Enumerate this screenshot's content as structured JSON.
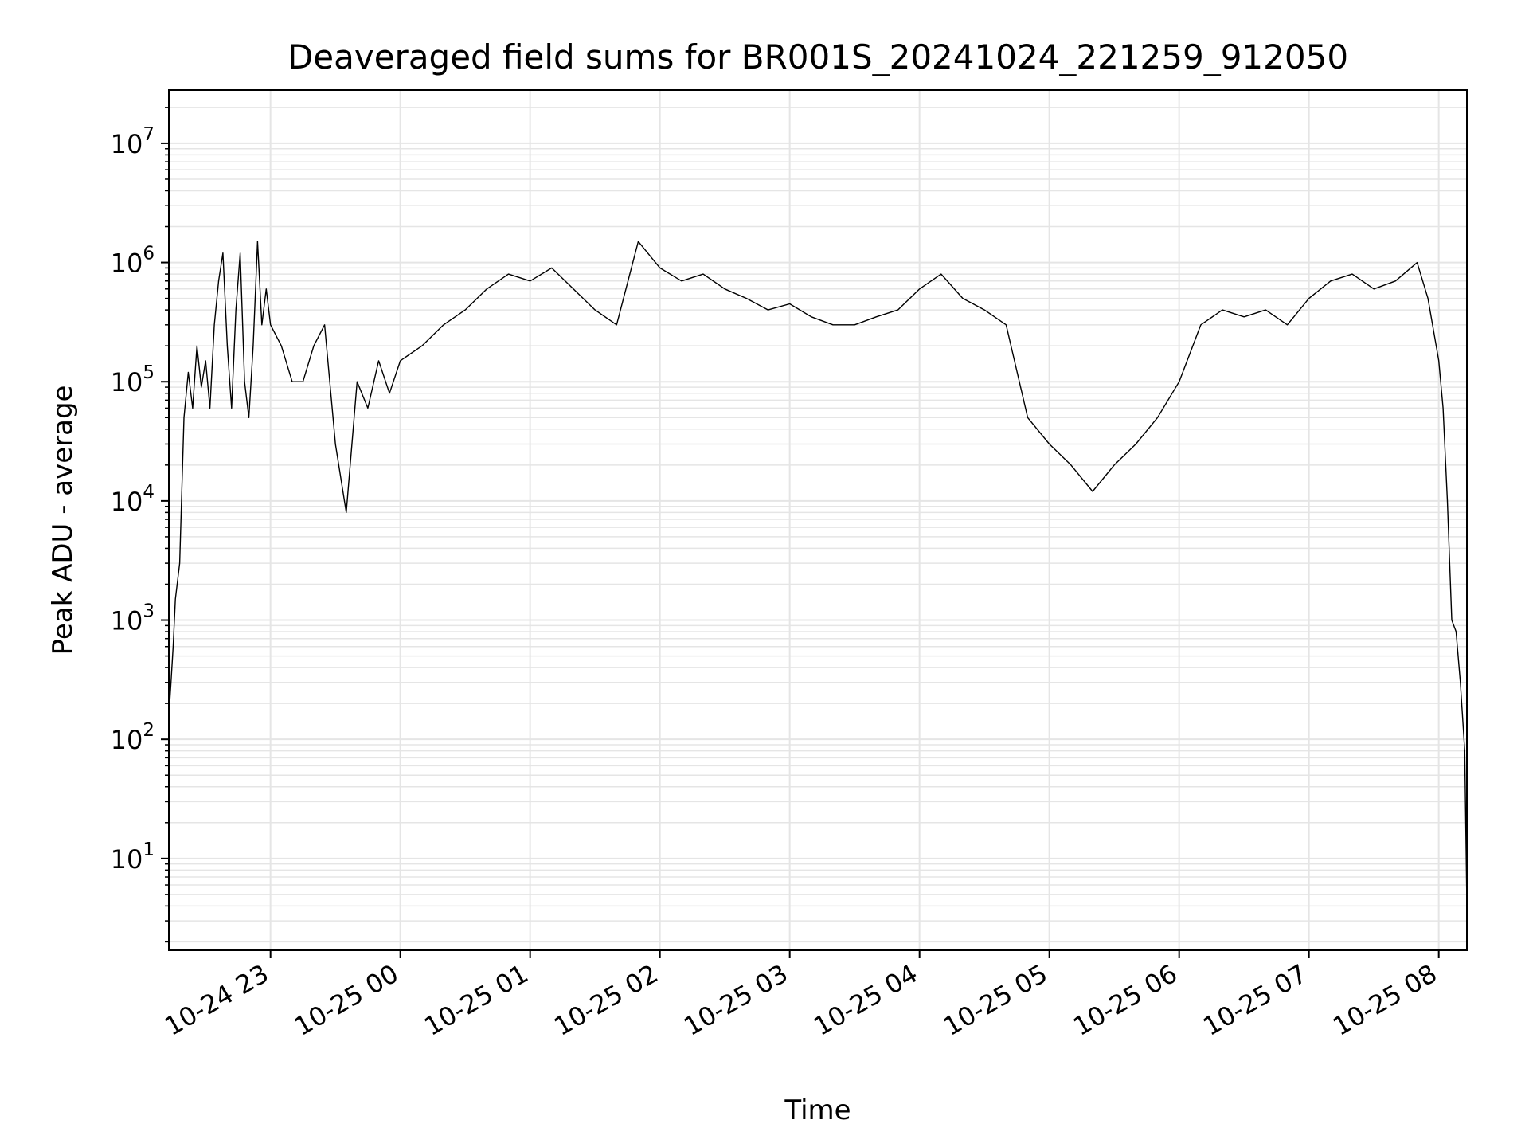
{
  "chart_data": {
    "type": "line",
    "title": "Deaveraged field sums for BR001S_20241024_221259_912050",
    "xlabel": "Time",
    "ylabel": "Peak ADU - average",
    "y_scale": "log",
    "ylim": [
      1.7,
      28000000
    ],
    "xlim": [
      "2024-10-24 22:13",
      "2024-10-25 08:13"
    ],
    "grid": true,
    "line_color": "#000000",
    "grid_color": "#e5e5e5",
    "x_ticks": [
      {
        "t": "2024-10-24 23:00",
        "label": "10-24 23"
      },
      {
        "t": "2024-10-25 00:00",
        "label": "10-25 00"
      },
      {
        "t": "2024-10-25 01:00",
        "label": "10-25 01"
      },
      {
        "t": "2024-10-25 02:00",
        "label": "10-25 02"
      },
      {
        "t": "2024-10-25 03:00",
        "label": "10-25 03"
      },
      {
        "t": "2024-10-25 04:00",
        "label": "10-25 04"
      },
      {
        "t": "2024-10-25 05:00",
        "label": "10-25 05"
      },
      {
        "t": "2024-10-25 06:00",
        "label": "10-25 06"
      },
      {
        "t": "2024-10-25 07:00",
        "label": "10-25 07"
      },
      {
        "t": "2024-10-25 08:00",
        "label": "10-25 08"
      }
    ],
    "y_ticks": [
      {
        "v": 10,
        "base": "10",
        "exp": "1"
      },
      {
        "v": 100,
        "base": "10",
        "exp": "2"
      },
      {
        "v": 1000,
        "base": "10",
        "exp": "3"
      },
      {
        "v": 10000,
        "base": "10",
        "exp": "4"
      },
      {
        "v": 100000,
        "base": "10",
        "exp": "5"
      },
      {
        "v": 1000000,
        "base": "10",
        "exp": "6"
      },
      {
        "v": 10000000,
        "base": "10",
        "exp": "7"
      }
    ],
    "series": [
      {
        "x": [
          "2024-10-24 22:13",
          "2024-10-24 22:14",
          "2024-10-24 22:15",
          "2024-10-24 22:16",
          "2024-10-24 22:18",
          "2024-10-24 22:20",
          "2024-10-24 22:22",
          "2024-10-24 22:24",
          "2024-10-24 22:26",
          "2024-10-24 22:28",
          "2024-10-24 22:30",
          "2024-10-24 22:32",
          "2024-10-24 22:34",
          "2024-10-24 22:36",
          "2024-10-24 22:38",
          "2024-10-24 22:40",
          "2024-10-24 22:42",
          "2024-10-24 22:44",
          "2024-10-24 22:46",
          "2024-10-24 22:48",
          "2024-10-24 22:50",
          "2024-10-24 22:52",
          "2024-10-24 22:54",
          "2024-10-24 22:56",
          "2024-10-24 22:58",
          "2024-10-24 23:00",
          "2024-10-24 23:05",
          "2024-10-24 23:10",
          "2024-10-24 23:15",
          "2024-10-24 23:20",
          "2024-10-24 23:25",
          "2024-10-24 23:30",
          "2024-10-24 23:35",
          "2024-10-24 23:40",
          "2024-10-24 23:45",
          "2024-10-24 23:50",
          "2024-10-24 23:55",
          "2024-10-25 00:00",
          "2024-10-25 00:10",
          "2024-10-25 00:20",
          "2024-10-25 00:30",
          "2024-10-25 00:40",
          "2024-10-25 00:50",
          "2024-10-25 01:00",
          "2024-10-25 01:10",
          "2024-10-25 01:20",
          "2024-10-25 01:30",
          "2024-10-25 01:40",
          "2024-10-25 01:50",
          "2024-10-25 02:00",
          "2024-10-25 02:10",
          "2024-10-25 02:20",
          "2024-10-25 02:30",
          "2024-10-25 02:40",
          "2024-10-25 02:50",
          "2024-10-25 03:00",
          "2024-10-25 03:10",
          "2024-10-25 03:20",
          "2024-10-25 03:30",
          "2024-10-25 03:40",
          "2024-10-25 03:50",
          "2024-10-25 04:00",
          "2024-10-25 04:10",
          "2024-10-25 04:20",
          "2024-10-25 04:30",
          "2024-10-25 04:40",
          "2024-10-25 04:50",
          "2024-10-25 05:00",
          "2024-10-25 05:10",
          "2024-10-25 05:20",
          "2024-10-25 05:30",
          "2024-10-25 05:40",
          "2024-10-25 05:50",
          "2024-10-25 06:00",
          "2024-10-25 06:10",
          "2024-10-25 06:20",
          "2024-10-25 06:30",
          "2024-10-25 06:40",
          "2024-10-25 06:50",
          "2024-10-25 07:00",
          "2024-10-25 07:10",
          "2024-10-25 07:20",
          "2024-10-25 07:30",
          "2024-10-25 07:40",
          "2024-10-25 07:50",
          "2024-10-25 07:55",
          "2024-10-25 08:00",
          "2024-10-25 08:02",
          "2024-10-25 08:04",
          "2024-10-25 08:06",
          "2024-10-25 08:08",
          "2024-10-25 08:10",
          "2024-10-25 08:12",
          "2024-10-25 08:13"
        ],
        "y": [
          160,
          300,
          600,
          1500,
          3000,
          50000,
          120000,
          60000,
          200000,
          90000,
          150000,
          60000,
          300000,
          700000,
          1200000,
          200000,
          60000,
          400000,
          1200000,
          100000,
          50000,
          200000,
          1500000,
          300000,
          600000,
          300000,
          200000,
          100000,
          100000,
          200000,
          300000,
          30000,
          8000,
          100000,
          60000,
          150000,
          80000,
          150000,
          200000,
          300000,
          400000,
          600000,
          800000,
          700000,
          900000,
          600000,
          400000,
          300000,
          1500000,
          900000,
          700000,
          800000,
          600000,
          500000,
          400000,
          450000,
          350000,
          300000,
          300000,
          350000,
          400000,
          600000,
          800000,
          500000,
          400000,
          300000,
          50000,
          30000,
          20000,
          12000,
          20000,
          30000,
          50000,
          100000,
          300000,
          400000,
          350000,
          400000,
          300000,
          500000,
          700000,
          800000,
          600000,
          700000,
          1000000,
          500000,
          150000,
          60000,
          10000,
          1000,
          800,
          300,
          80,
          4
        ]
      }
    ]
  }
}
